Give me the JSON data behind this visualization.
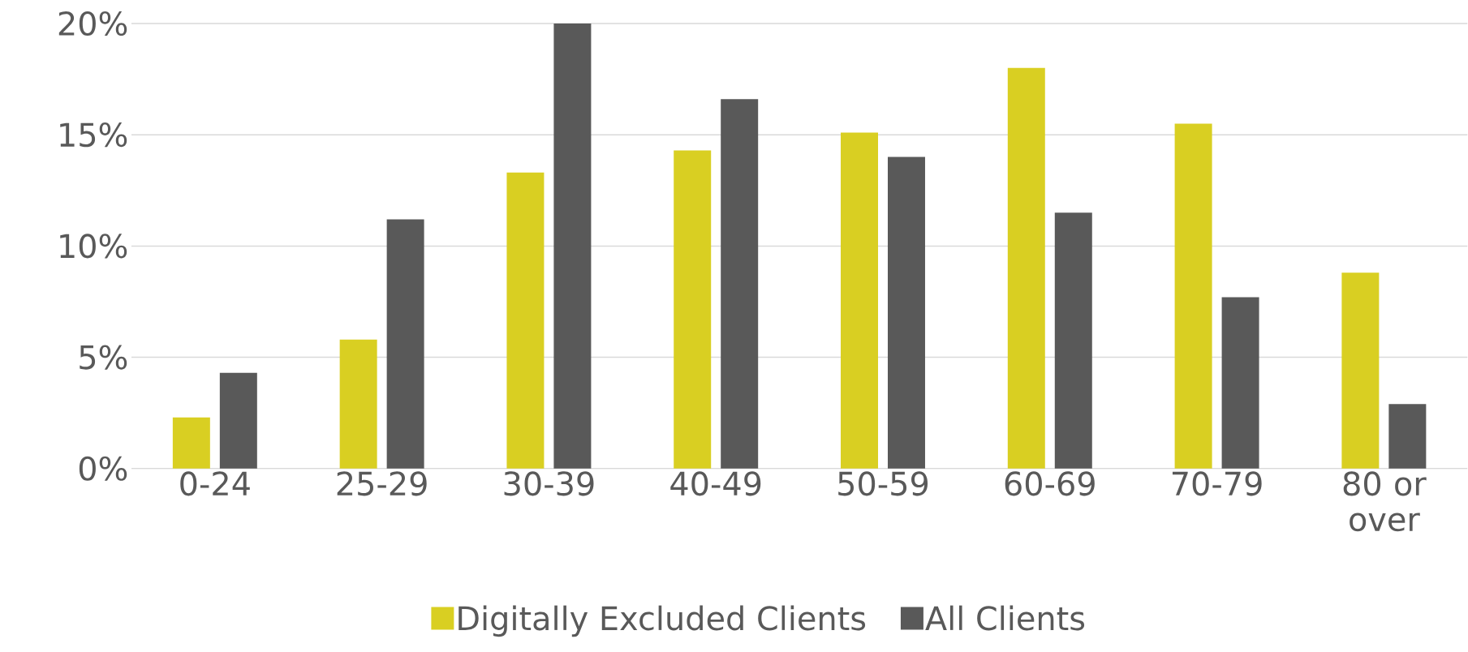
{
  "chart_data": {
    "type": "bar",
    "categories": [
      "0-24",
      "25-29",
      "30-39",
      "40-49",
      "50-59",
      "60-69",
      "70-79",
      "80 or over"
    ],
    "series": [
      {
        "name": "Digitally Excluded Clients",
        "color": "#d9cf22",
        "values": [
          2.3,
          5.8,
          13.3,
          14.3,
          15.1,
          18.0,
          15.5,
          8.8
        ]
      },
      {
        "name": "All Clients",
        "color": "#595959",
        "values": [
          4.3,
          11.2,
          20.0,
          16.6,
          14.0,
          11.5,
          7.7,
          2.9
        ]
      }
    ],
    "ylim": [
      0,
      20
    ],
    "yticks": [
      {
        "value": 0,
        "label": "0%"
      },
      {
        "value": 5,
        "label": "5%"
      },
      {
        "value": 10,
        "label": "10%"
      },
      {
        "value": 15,
        "label": "15%"
      },
      {
        "value": 20,
        "label": "20%"
      }
    ],
    "grid": "y",
    "legend": "bottom"
  }
}
